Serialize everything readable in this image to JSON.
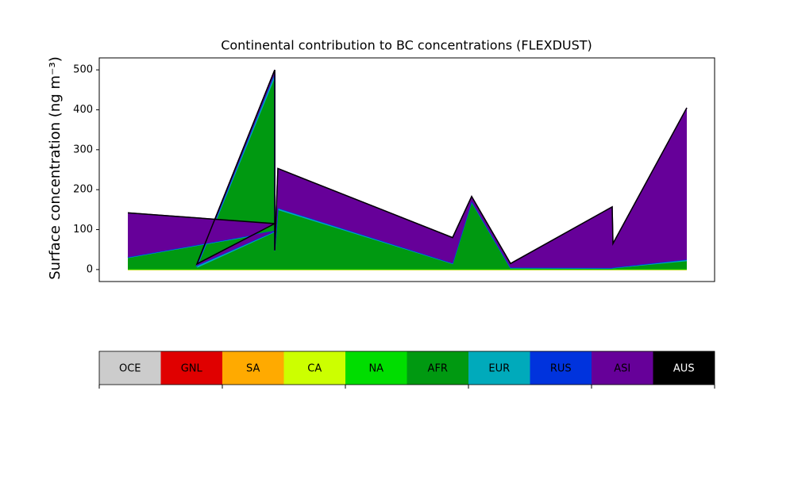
{
  "chart_data": {
    "type": "stackedarea",
    "title": "Continental contribution to BC concentrations (FLEXDUST)",
    "y_label": "Surface concentration (ng m⁻³)",
    "x": [
      36,
      221,
      123,
      221,
      221,
      225,
      445,
      469,
      518,
      646,
      647,
      740
    ],
    "xlim": [
      0,
      775
    ],
    "ylim": [
      -30,
      530
    ],
    "yticks": [
      0,
      100,
      200,
      300,
      400,
      500
    ],
    "series": [
      {
        "name": "OCE",
        "color": "#cccccc",
        "values": [
          0,
          0,
          0,
          0,
          0,
          0,
          0,
          0,
          0,
          0,
          0,
          0
        ]
      },
      {
        "name": "GNL",
        "color": "#e00000",
        "values": [
          0,
          0,
          0,
          0,
          0,
          0,
          0,
          0,
          0,
          0,
          0,
          0
        ]
      },
      {
        "name": "SA",
        "color": "#ffaa00",
        "values": [
          0,
          0,
          0,
          0,
          0,
          0,
          0,
          0,
          0,
          0,
          0,
          0
        ]
      },
      {
        "name": "CA",
        "color": "#ccff00",
        "values": [
          0,
          0,
          0,
          0,
          0,
          0,
          0,
          0,
          0,
          0,
          0,
          0
        ]
      },
      {
        "name": "NA",
        "color": "#00dd00",
        "values": [
          1,
          1,
          1,
          1,
          1,
          1,
          1,
          1,
          1,
          1,
          1,
          1
        ]
      },
      {
        "name": "AFR",
        "color": "#009911",
        "values": [
          28,
          92,
          3,
          478,
          45,
          148,
          13,
          166,
          2,
          1,
          2,
          20
        ]
      },
      {
        "name": "EUR",
        "color": "#00aabb",
        "values": [
          1,
          2,
          5,
          10,
          1,
          4,
          1,
          3,
          1,
          1,
          1,
          3
        ]
      },
      {
        "name": "RUS",
        "color": "#0033dd",
        "values": [
          1,
          1,
          1,
          2,
          1,
          1,
          1,
          1,
          1,
          1,
          1,
          1
        ]
      },
      {
        "name": "ASI",
        "color": "#660099",
        "values": [
          111,
          19,
          4,
          9,
          0,
          99,
          64,
          12,
          10,
          153,
          60,
          380
        ]
      },
      {
        "name": "AUS",
        "color": "#000000",
        "values": [
          0,
          0,
          0,
          0,
          0,
          0,
          0,
          0,
          0,
          0,
          0,
          0
        ]
      }
    ]
  }
}
